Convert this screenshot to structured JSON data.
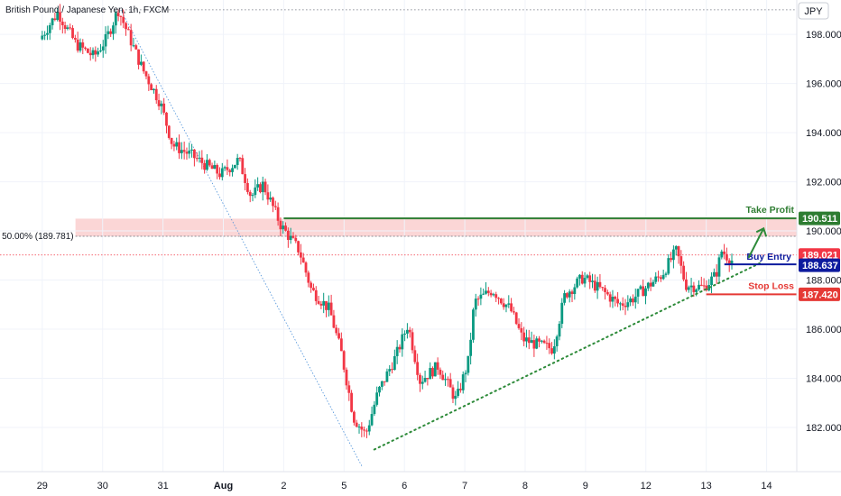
{
  "chart_data": {
    "type": "candlestick",
    "title": "British Pound / Japanese Yen, 1h, FXCM",
    "currency": "JPY",
    "y_ticks": [
      "182.000",
      "184.000",
      "186.000",
      "188.000",
      "190.000",
      "192.000",
      "194.000",
      "196.000",
      "198.000"
    ],
    "ylim": [
      180.2,
      199.4
    ],
    "x_ticks": [
      {
        "label": "29",
        "day": 0
      },
      {
        "label": "30",
        "day": 1
      },
      {
        "label": "31",
        "day": 2
      },
      {
        "label": "Aug",
        "day": 3
      },
      {
        "label": "2",
        "day": 4
      },
      {
        "label": "5",
        "day": 5
      },
      {
        "label": "6",
        "day": 6
      },
      {
        "label": "7",
        "day": 7
      },
      {
        "label": "8",
        "day": 8
      },
      {
        "label": "9",
        "day": 9
      },
      {
        "label": "12",
        "day": 10
      },
      {
        "label": "13",
        "day": 11
      },
      {
        "label": "14",
        "day": 12
      }
    ],
    "xlim": [
      -0.7,
      12.5
    ],
    "price_path": [
      [
        0,
        197.8
      ],
      [
        0.3,
        198.9
      ],
      [
        0.6,
        197.6
      ],
      [
        0.9,
        197.1
      ],
      [
        1.1,
        197.8
      ],
      [
        1.3,
        199.0
      ],
      [
        1.7,
        196.6
      ],
      [
        2.0,
        195.2
      ],
      [
        2.2,
        193.5
      ],
      [
        2.5,
        193.1
      ],
      [
        2.8,
        192.6
      ],
      [
        3.0,
        192.3
      ],
      [
        3.3,
        192.9
      ],
      [
        3.5,
        191.4
      ],
      [
        3.7,
        191.9
      ],
      [
        4.0,
        190.2
      ],
      [
        4.3,
        189.2
      ],
      [
        4.5,
        187.6
      ],
      [
        4.8,
        186.8
      ],
      [
        5.0,
        185.0
      ],
      [
        5.2,
        182.4
      ],
      [
        5.4,
        181.7
      ],
      [
        5.6,
        183.4
      ],
      [
        5.9,
        184.9
      ],
      [
        6.1,
        186.2
      ],
      [
        6.3,
        183.9
      ],
      [
        6.6,
        184.5
      ],
      [
        6.9,
        183.1
      ],
      [
        7.1,
        184.7
      ],
      [
        7.2,
        187.1
      ],
      [
        7.5,
        187.6
      ],
      [
        7.8,
        186.8
      ],
      [
        8.0,
        185.6
      ],
      [
        8.2,
        185.4
      ],
      [
        8.5,
        185.2
      ],
      [
        8.7,
        187.4
      ],
      [
        9.0,
        188.1
      ],
      [
        9.3,
        187.6
      ],
      [
        9.6,
        187.0
      ],
      [
        9.8,
        187.2
      ],
      [
        10.0,
        187.6
      ],
      [
        10.3,
        188.2
      ],
      [
        10.55,
        189.2
      ],
      [
        10.7,
        187.8
      ],
      [
        11.0,
        187.7
      ],
      [
        11.2,
        188.2
      ],
      [
        11.3,
        189.2
      ],
      [
        11.45,
        188.8
      ]
    ],
    "fib_level": {
      "label": "50.00% (189.781)",
      "value": 189.781
    },
    "resistance_zone": [
      189.78,
      190.5
    ],
    "take_profit": {
      "label": "Take Profit",
      "value": "190.511",
      "y": 190.511,
      "color": "#2e7d32"
    },
    "buy_entry": {
      "label": "Buy Entry",
      "value": "188.637",
      "y": 188.637,
      "color": "#0d1b9e"
    },
    "stop_loss": {
      "label": "Stop Loss",
      "value": "187.420",
      "y": 187.42,
      "color": "#e53935"
    },
    "current_price": {
      "value": "189.021",
      "y": 189.021,
      "color": "#f23645"
    },
    "trendline": {
      "from": [
        5.5,
        181.1
      ],
      "to": [
        11.9,
        188.7
      ]
    },
    "fib_line": {
      "from": [
        1.3,
        199.0
      ],
      "to": [
        5.3,
        180.4
      ]
    },
    "colors": {
      "up": "#089981",
      "down": "#f23645"
    }
  }
}
